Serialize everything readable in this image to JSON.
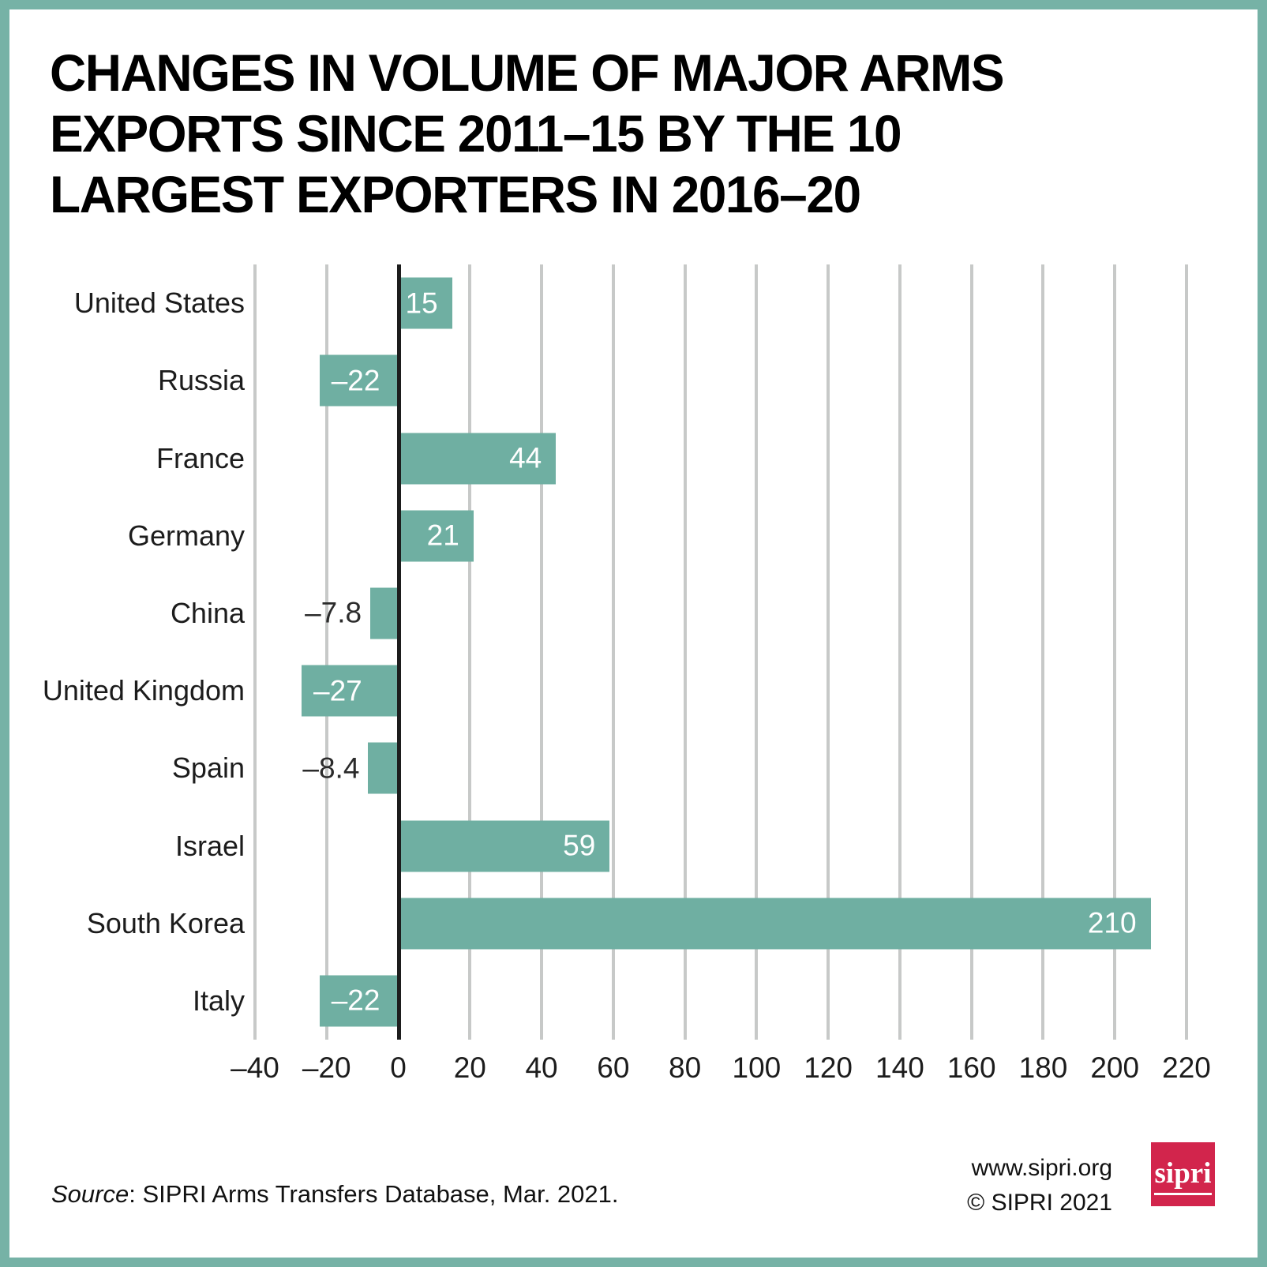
{
  "title": {
    "lines": [
      "CHANGES IN VOLUME OF MAJOR ARMS",
      "EXPORTS SINCE 2011–15 BY THE 10",
      "LARGEST EXPORTERS IN 2016–20"
    ]
  },
  "chart_data": {
    "type": "bar",
    "orientation": "horizontal",
    "title": "Changes in volume of major arms exports since 2011–15 by the 10 largest exporters in 2016–20",
    "categories": [
      "United States",
      "Russia",
      "France",
      "Germany",
      "China",
      "United Kingdom",
      "Spain",
      "Israel",
      "South Korea",
      "Italy"
    ],
    "values": [
      15,
      -22,
      44,
      21,
      -7.8,
      -27,
      -8.4,
      59,
      210,
      -22
    ],
    "value_labels": [
      "15",
      "–22",
      "44",
      "21",
      "–7.8",
      "–27",
      "–8.4",
      "59",
      "210",
      "–22"
    ],
    "xlabel": "",
    "ylabel": "",
    "xlim": [
      -40,
      220
    ],
    "xticks": [
      -40,
      -20,
      0,
      20,
      40,
      60,
      80,
      100,
      120,
      140,
      160,
      180,
      200,
      220
    ],
    "xtick_labels": [
      "–40",
      "–20",
      "0",
      "20",
      "40",
      "60",
      "80",
      "100",
      "120",
      "140",
      "160",
      "180",
      "200",
      "220"
    ],
    "grid": true,
    "legend": false,
    "bar_color": "#6fafa2",
    "grid_color": "#c7c9c8",
    "zero_axis_color": "#1d1d1d",
    "inside_label_color": "#ffffff",
    "outside_label_color": "#2b2b2b"
  },
  "footer": {
    "source_italic": "Source",
    "source_rest": ": SIPRI Arms Transfers Database, Mar. 2021.",
    "website": "www.sipri.org",
    "copyright": "© SIPRI 2021",
    "logo_text": "sipri",
    "logo_color": "#d2254c"
  },
  "frame": {
    "border_color": "#76b2a6",
    "background": "#ffffff"
  }
}
